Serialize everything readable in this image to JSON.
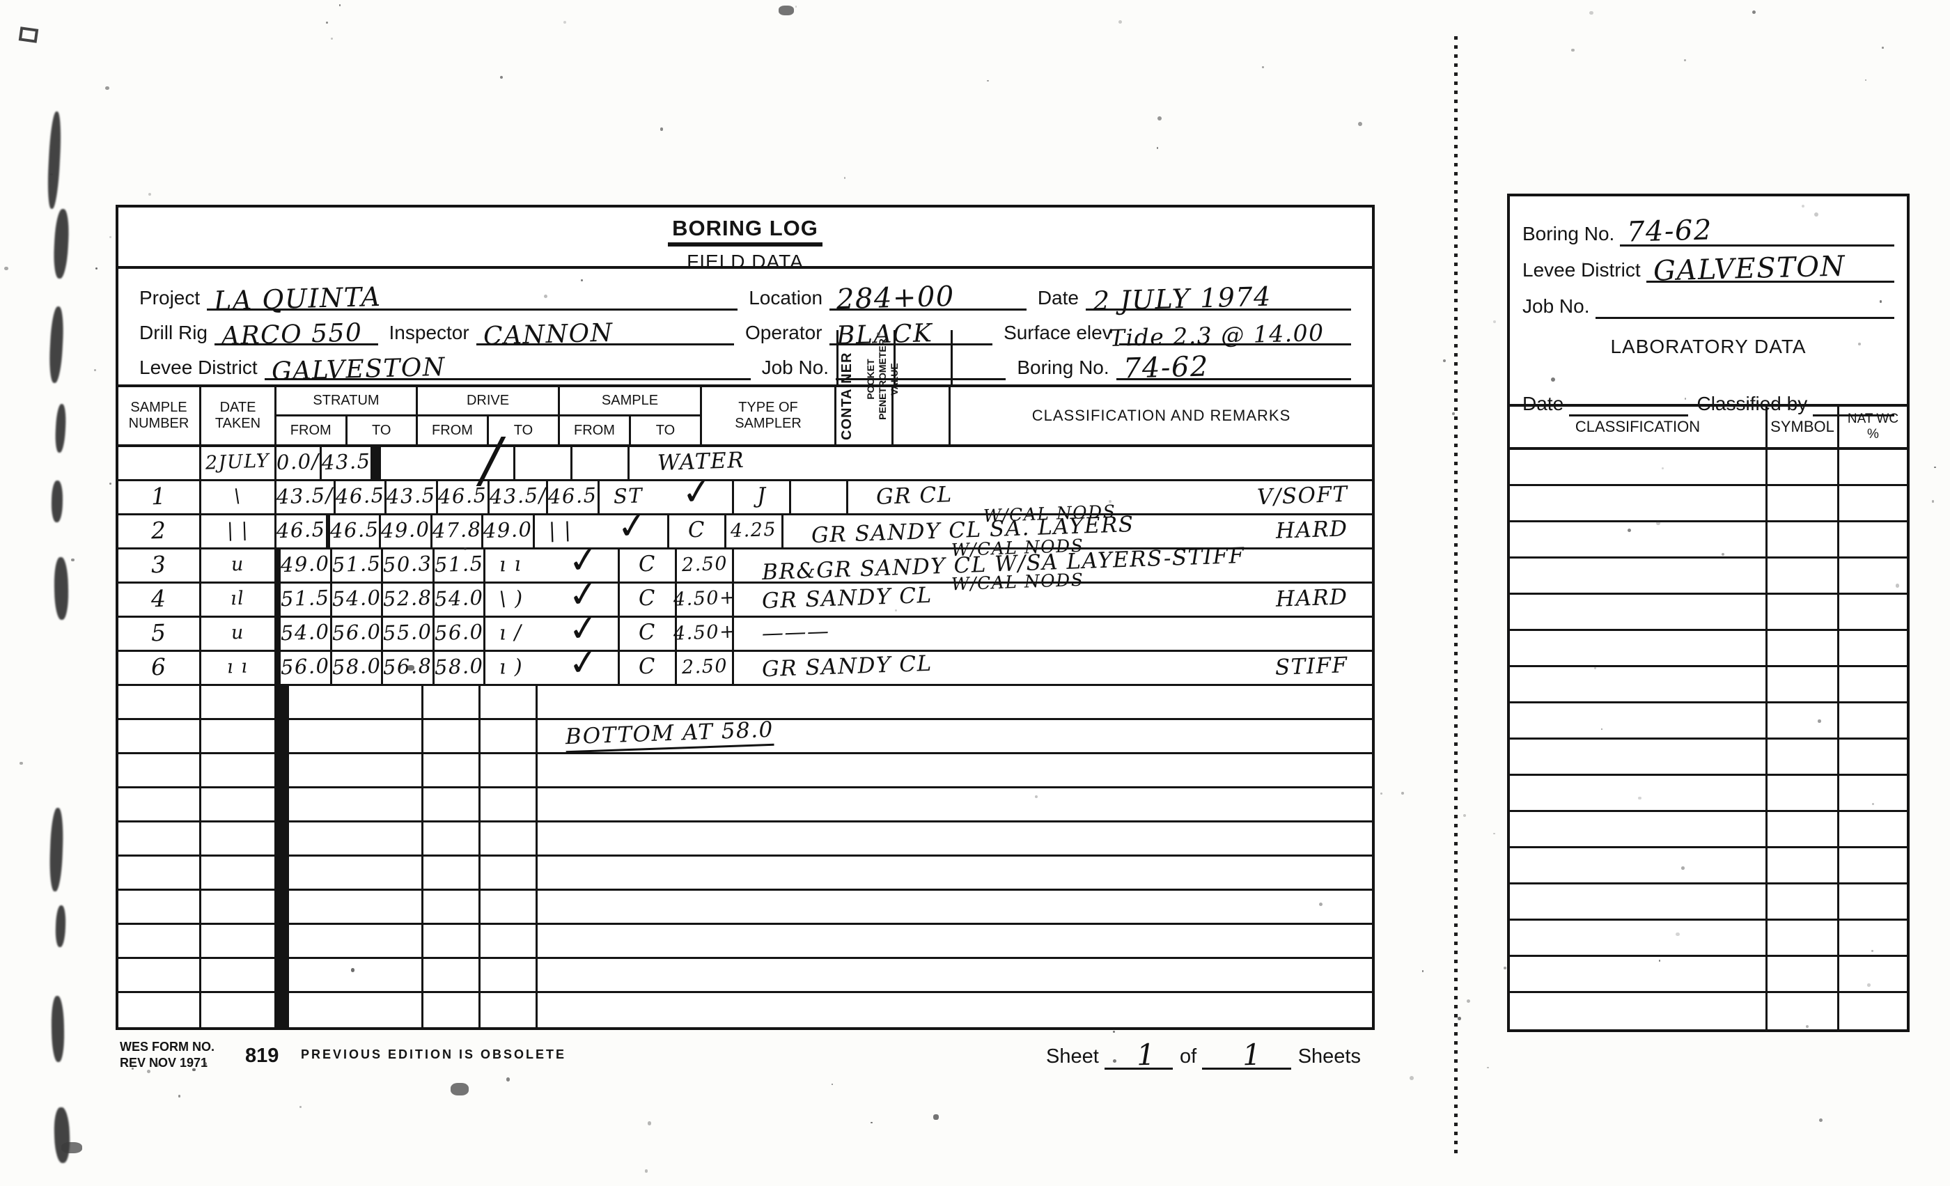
{
  "page": {
    "form": {
      "title": "BORING LOG",
      "subtitle": "FIELD DATA",
      "fields": {
        "project_label": "Project",
        "project_value": "LA QUINTA",
        "location_label": "Location",
        "location_value": "284+00",
        "date_label": "Date",
        "date_value": "2 JULY 1974",
        "drill_rig_label": "Drill Rig",
        "drill_rig_value": "ARCO 550",
        "inspector_label": "Inspector",
        "inspector_value": "CANNON",
        "operator_label": "Operator",
        "operator_value": "BLACK",
        "surface_elev_label": "Surface elev",
        "surface_elev_value": "Tide 2.3 @ 14.00",
        "levee_district_label": "Levee District",
        "levee_district_value": "GALVESTON",
        "job_no_label": "Job No.",
        "job_no_value": "",
        "boring_no_label": "Boring No.",
        "boring_no_value": "74-62"
      },
      "table": {
        "headers": {
          "sample_number": "SAMPLE\nNUMBER",
          "date_taken": "DATE\nTAKEN",
          "stratum": "STRATUM",
          "drive": "DRIVE",
          "sample": "SAMPLE",
          "from": "FROM",
          "to": "TO",
          "type_of_sampler": "TYPE OF\nSAMPLER",
          "container": "CONTAINER",
          "penetrometer": "POCKET\nPENETROMETER\nVALUE",
          "classification": "CLASSIFICATION AND REMARKS"
        },
        "rows": [
          {
            "n": "",
            "date": "2JULY",
            "st_f": "0.0/",
            "st_t": "43.5",
            "dr_f": "",
            "dr_t": "",
            "sa_f": "",
            "sa_t": "",
            "type": "",
            "chk": "slash",
            "cont": "",
            "pen": "",
            "rm": "WATER",
            "rm_sup": "",
            "rm_r": ""
          },
          {
            "n": "1",
            "date": "\\",
            "st_f": "43.5/",
            "st_t": "46.5",
            "dr_f": "43.5",
            "dr_t": "46.5",
            "sa_f": "43.5/",
            "sa_t": "46.5",
            "type": "ST",
            "chk": "check",
            "cont": "J",
            "pen": "",
            "rm": "GR CL",
            "rm_sup": "",
            "rm_r": "V/SOFT"
          },
          {
            "n": "2",
            "date": "| |",
            "st_f": "46.5",
            "st_t": "",
            "dr_f": "46.5",
            "dr_t": "49.0",
            "sa_f": "47.8",
            "sa_t": "49.0",
            "type": "| |",
            "chk": "check",
            "cont": "C",
            "pen": "4.25",
            "rm": "GR SANDY CL   SA. LAYERS",
            "rm_sup": "W/CAL NODS",
            "rm_r": "HARD"
          },
          {
            "n": "3",
            "date": "u",
            "st_f": "",
            "st_t": "",
            "dr_f": "49.0",
            "dr_t": "51.5",
            "sa_f": "50.3",
            "sa_t": "51.5",
            "type": "ı ı",
            "chk": "check",
            "cont": "C",
            "pen": "2.50",
            "rm": "BR&GR SANDY CL W/SA LAYERS-STIFF",
            "rm_sup": "W/CAL NODS",
            "rm_r": ""
          },
          {
            "n": "4",
            "date": "ıl",
            "st_f": "",
            "st_t": "",
            "dr_f": "51.5",
            "dr_t": "54.0",
            "sa_f": "52.8",
            "sa_t": "54.0",
            "type": "\\ )",
            "chk": "check",
            "cont": "C",
            "pen": "4.50+",
            "rm": "GR SANDY CL",
            "rm_sup": "W/CAL NODS",
            "rm_r": "HARD"
          },
          {
            "n": "5",
            "date": "u",
            "st_f": "",
            "st_t": "",
            "dr_f": "54.0",
            "dr_t": "56.0",
            "sa_f": "55.0",
            "sa_t": "56.0",
            "type": "ı /",
            "chk": "check",
            "cont": "C",
            "pen": "4.50+",
            "rm": "———",
            "rm_sup": "",
            "rm_r": ""
          },
          {
            "n": "6",
            "date": "ı ı",
            "st_f": "",
            "st_t": "",
            "dr_f": "56.0",
            "dr_t": "58.0",
            "sa_f": "56.8",
            "sa_t": "58.0",
            "type": "ı )",
            "chk": "check",
            "cont": "C",
            "pen": "2.50",
            "rm": "GR SANDY CL",
            "rm_sup": "",
            "rm_r": "STIFF"
          },
          {
            "n": "",
            "date": "",
            "st_f": "",
            "st_t": "",
            "dr_f": "",
            "dr_t": "",
            "sa_f": "",
            "sa_t": "",
            "type": "",
            "chk": "",
            "cont": "",
            "pen": "",
            "rm": "",
            "rm_sup": "",
            "rm_r": ""
          },
          {
            "n": "",
            "date": "",
            "st_f": "",
            "st_t": "",
            "dr_f": "",
            "dr_t": "",
            "sa_f": "",
            "sa_t": "",
            "type": "",
            "chk": "",
            "cont": "",
            "pen": "",
            "rm": "BOTTOM AT 58.0",
            "rm_u": true,
            "rm_sup": "",
            "rm_r": ""
          },
          {
            "n": "",
            "date": "",
            "st_f": "",
            "st_t": "",
            "dr_f": "",
            "dr_t": "",
            "sa_f": "",
            "sa_t": "",
            "type": "",
            "chk": "",
            "cont": "",
            "pen": "",
            "rm": "",
            "rm_sup": "",
            "rm_r": ""
          },
          {
            "n": "",
            "date": "",
            "st_f": "",
            "st_t": "",
            "dr_f": "",
            "dr_t": "",
            "sa_f": "",
            "sa_t": "",
            "type": "",
            "chk": "",
            "cont": "",
            "pen": "",
            "rm": "",
            "rm_sup": "",
            "rm_r": ""
          },
          {
            "n": "",
            "date": "",
            "st_f": "",
            "st_t": "",
            "dr_f": "",
            "dr_t": "",
            "sa_f": "",
            "sa_t": "",
            "type": "",
            "chk": "",
            "cont": "",
            "pen": "",
            "rm": "",
            "rm_sup": "",
            "rm_r": ""
          },
          {
            "n": "",
            "date": "",
            "st_f": "",
            "st_t": "",
            "dr_f": "",
            "dr_t": "",
            "sa_f": "",
            "sa_t": "",
            "type": "",
            "chk": "",
            "cont": "",
            "pen": "",
            "rm": "",
            "rm_sup": "",
            "rm_r": ""
          },
          {
            "n": "",
            "date": "",
            "st_f": "",
            "st_t": "",
            "dr_f": "",
            "dr_t": "",
            "sa_f": "",
            "sa_t": "",
            "type": "",
            "chk": "",
            "cont": "",
            "pen": "",
            "rm": "",
            "rm_sup": "",
            "rm_r": ""
          },
          {
            "n": "",
            "date": "",
            "st_f": "",
            "st_t": "",
            "dr_f": "",
            "dr_t": "",
            "sa_f": "",
            "sa_t": "",
            "type": "",
            "chk": "",
            "cont": "",
            "pen": "",
            "rm": "",
            "rm_sup": "",
            "rm_r": ""
          },
          {
            "n": "",
            "date": "",
            "st_f": "",
            "st_t": "",
            "dr_f": "",
            "dr_t": "",
            "sa_f": "",
            "sa_t": "",
            "type": "",
            "chk": "",
            "cont": "",
            "pen": "",
            "rm": "",
            "rm_sup": "",
            "rm_r": ""
          },
          {
            "n": "",
            "date": "",
            "st_f": "",
            "st_t": "",
            "dr_f": "",
            "dr_t": "",
            "sa_f": "",
            "sa_t": "",
            "type": "",
            "chk": "",
            "cont": "",
            "pen": "",
            "rm": "",
            "rm_sup": "",
            "rm_r": ""
          }
        ]
      },
      "footer": {
        "form_no_line1": "WES FORM NO.",
        "form_no_line2": "REV NOV 1971",
        "form_number": "819",
        "obsolete_note": "PREVIOUS EDITION IS OBSOLETE",
        "sheet_label": "Sheet",
        "sheet_value": "1",
        "of_label": "of",
        "total_sheets_value": "1",
        "sheets_label": "Sheets"
      }
    },
    "lab": {
      "boring_no_label": "Boring No.",
      "boring_no_value": "74-62",
      "levee_district_label": "Levee District",
      "levee_district_value": "GALVESTON",
      "job_no_label": "Job No.",
      "job_no_value": "",
      "title": "LABORATORY DATA",
      "date_label": "Date",
      "date_value": "",
      "classified_by_label": "Classified by",
      "classified_by_value": "",
      "headers": {
        "classification": "CLASSIFICATION",
        "symbol": "SYMBOL",
        "nat_wc": "NAT WC\n%"
      },
      "empty_row_count": 16
    },
    "ink_color": "#141414"
  }
}
